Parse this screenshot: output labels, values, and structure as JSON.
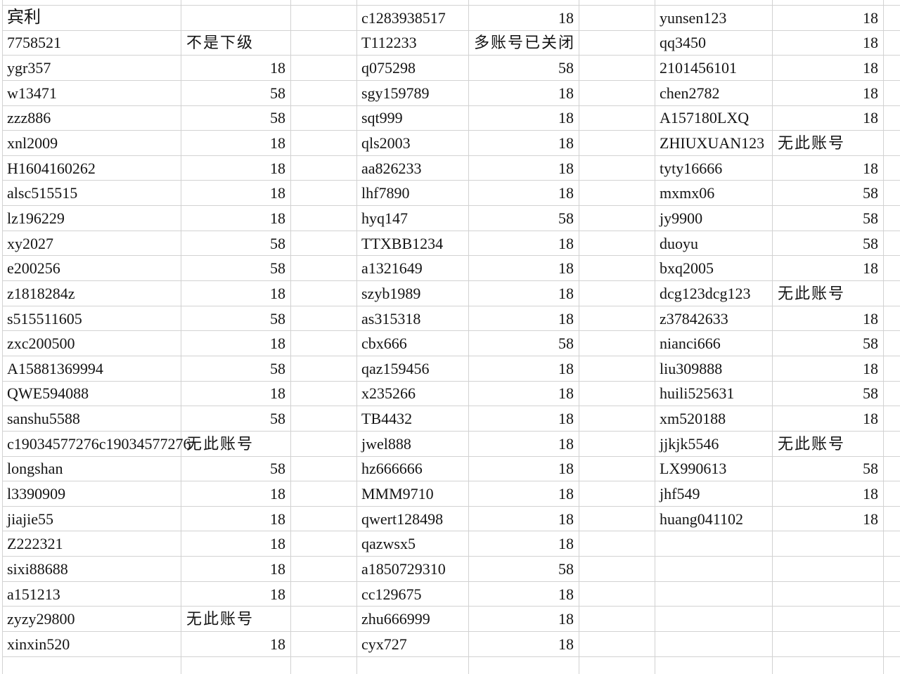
{
  "sheet": {
    "description_labels": {
      "status_not_subordinate": "不是下级",
      "status_no_account": "无此账号",
      "status_multi_account_closed": "多账号已关闭"
    },
    "colors": {
      "background": "#ffffff",
      "gridline": "#d2d2d2",
      "text": "#141414"
    },
    "groups": [
      {
        "rows": [
          {
            "account": "宾利",
            "result": ""
          },
          {
            "account": "7758521",
            "result": "不是下级"
          },
          {
            "account": "ygr357",
            "result": "18"
          },
          {
            "account": "w13471",
            "result": "58"
          },
          {
            "account": "zzz886",
            "result": "58"
          },
          {
            "account": "xnl2009",
            "result": "18"
          },
          {
            "account": "H1604160262",
            "result": "18"
          },
          {
            "account": "alsc515515",
            "result": "18"
          },
          {
            "account": "lz196229",
            "result": "18"
          },
          {
            "account": "xy2027",
            "result": "58"
          },
          {
            "account": "e200256",
            "result": "58"
          },
          {
            "account": "z1818284z",
            "result": "18"
          },
          {
            "account": "s515511605",
            "result": "58"
          },
          {
            "account": "zxc200500",
            "result": "18"
          },
          {
            "account": "A15881369994",
            "result": "58"
          },
          {
            "account": "QWE594088",
            "result": "18"
          },
          {
            "account": "sanshu5588",
            "result": "58"
          },
          {
            "account": "c19034577276c19034577276",
            "result": "无此账号"
          },
          {
            "account": "longshan",
            "result": "58"
          },
          {
            "account": "l3390909",
            "result": "18"
          },
          {
            "account": "jiajie55",
            "result": "18"
          },
          {
            "account": "Z222321",
            "result": "18"
          },
          {
            "account": "sixi88688",
            "result": "18"
          },
          {
            "account": "a151213",
            "result": "18"
          },
          {
            "account": "zyzy29800",
            "result": "无此账号"
          },
          {
            "account": "xinxin520",
            "result": "18"
          }
        ]
      },
      {
        "rows": [
          {
            "account": "c1283938517",
            "result": "18"
          },
          {
            "account": "T112233",
            "result": "多账号已关闭"
          },
          {
            "account": "q075298",
            "result": "58"
          },
          {
            "account": "sgy159789",
            "result": "18"
          },
          {
            "account": "sqt999",
            "result": "18"
          },
          {
            "account": "qls2003",
            "result": "18"
          },
          {
            "account": "aa826233",
            "result": "18"
          },
          {
            "account": "lhf7890",
            "result": "18"
          },
          {
            "account": "hyq147",
            "result": "58"
          },
          {
            "account": "TTXBB1234",
            "result": "18"
          },
          {
            "account": "a1321649",
            "result": "18"
          },
          {
            "account": "szyb1989",
            "result": "18"
          },
          {
            "account": "as315318",
            "result": "18"
          },
          {
            "account": "cbx666",
            "result": "58"
          },
          {
            "account": "qaz159456",
            "result": "18"
          },
          {
            "account": "x235266",
            "result": "18"
          },
          {
            "account": "TB4432",
            "result": "18"
          },
          {
            "account": "jwel888",
            "result": "18"
          },
          {
            "account": "hz666666",
            "result": "18"
          },
          {
            "account": "MMM9710",
            "result": "18"
          },
          {
            "account": "qwert128498",
            "result": "18"
          },
          {
            "account": "qazwsx5",
            "result": "18"
          },
          {
            "account": "a1850729310",
            "result": "58"
          },
          {
            "account": "cc129675",
            "result": "18"
          },
          {
            "account": "zhu666999",
            "result": "18"
          },
          {
            "account": "cyx727",
            "result": "18"
          }
        ]
      },
      {
        "rows": [
          {
            "account": "yunsen123",
            "result": "18"
          },
          {
            "account": "qq3450",
            "result": "18"
          },
          {
            "account": "2101456101",
            "result": "18"
          },
          {
            "account": "chen2782",
            "result": "18"
          },
          {
            "account": "A157180LXQ",
            "result": "18"
          },
          {
            "account": "ZHIUXUAN123",
            "result": "无此账号"
          },
          {
            "account": "tyty16666",
            "result": "18"
          },
          {
            "account": "mxmx06",
            "result": "58"
          },
          {
            "account": "jy9900",
            "result": "58"
          },
          {
            "account": "duoyu",
            "result": "58"
          },
          {
            "account": "bxq2005",
            "result": "18"
          },
          {
            "account": "dcg123dcg123",
            "result": "无此账号"
          },
          {
            "account": "z37842633",
            "result": "18"
          },
          {
            "account": "nianci666",
            "result": "58"
          },
          {
            "account": "liu309888",
            "result": "18"
          },
          {
            "account": "huili525631",
            "result": "58"
          },
          {
            "account": "xm520188",
            "result": "18"
          },
          {
            "account": "jjkjk5546",
            "result": "无此账号"
          },
          {
            "account": "LX990613",
            "result": "58"
          },
          {
            "account": "jhf549",
            "result": "18"
          },
          {
            "account": "huang041102",
            "result": "18"
          },
          {
            "account": "",
            "result": ""
          },
          {
            "account": "",
            "result": ""
          },
          {
            "account": "",
            "result": ""
          },
          {
            "account": "",
            "result": ""
          },
          {
            "account": "",
            "result": ""
          }
        ]
      }
    ]
  }
}
